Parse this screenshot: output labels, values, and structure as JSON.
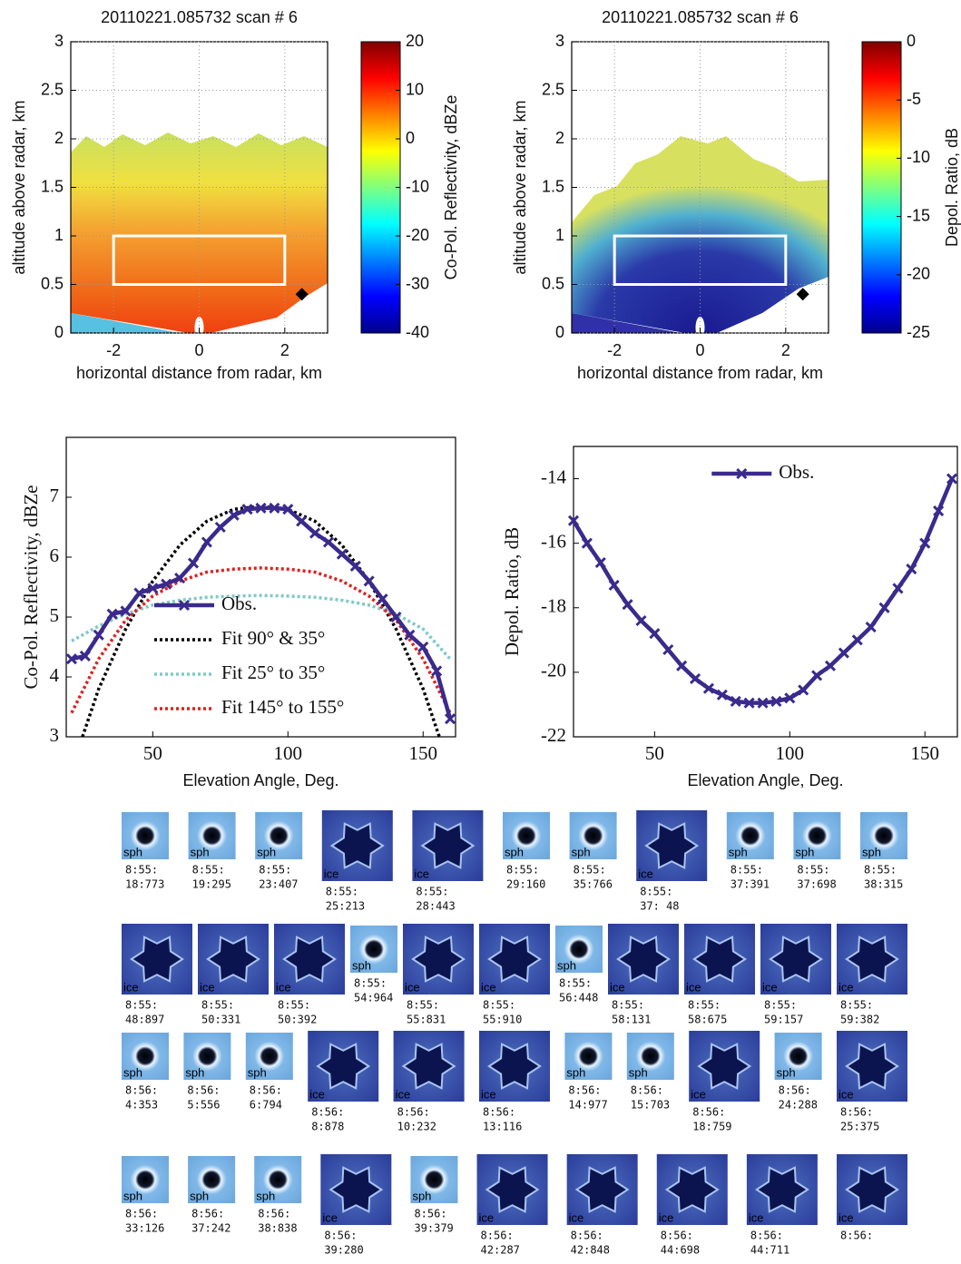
{
  "chart_data": [
    {
      "type": "heatmap",
      "title": "20110221.085732 scan # 6",
      "xlabel": "horizontal distance from radar, km",
      "ylabel": "altitude above radar, km",
      "xlim": [
        -3,
        3
      ],
      "xticks": [
        -2,
        0,
        2
      ],
      "ylim": [
        0,
        3
      ],
      "yticks": [
        0,
        0.5,
        1,
        1.5,
        2,
        2.5,
        3
      ],
      "grid": true,
      "colormap": "jet",
      "colorbar_label": "Co-Pol. Reflectivity, dBZe",
      "clim": [
        -40,
        20
      ],
      "cticks": [
        -40,
        -30,
        -20,
        -10,
        0,
        10,
        20
      ],
      "box": {
        "x": [
          -2,
          2
        ],
        "y": [
          0.5,
          1
        ]
      },
      "marker": {
        "x": 2.4,
        "y": 0.4
      }
    },
    {
      "type": "heatmap",
      "title": "20110221.085732 scan # 6",
      "xlabel": "horizontal distance from radar, km",
      "ylabel": "altitude above radar, km",
      "xlim": [
        -3,
        3
      ],
      "xticks": [
        -2,
        0,
        2
      ],
      "ylim": [
        0,
        3
      ],
      "yticks": [
        0,
        0.5,
        1,
        1.5,
        2,
        2.5,
        3
      ],
      "grid": true,
      "colormap": "jet",
      "colorbar_label": "Depol. Ratio, dB",
      "clim": [
        -25,
        0
      ],
      "cticks": [
        -25,
        -20,
        -15,
        -10,
        -5,
        0
      ],
      "box": {
        "x": [
          -2,
          2
        ],
        "y": [
          0.5,
          1
        ]
      },
      "marker": {
        "x": 2.4,
        "y": 0.4
      }
    },
    {
      "type": "line",
      "xlabel": "Elevation Angle, Deg.",
      "ylabel": "Co-Pol. Reflectivity, dBZe",
      "xlim": [
        18,
        162
      ],
      "xticks": [
        50,
        100,
        150
      ],
      "ylim": [
        3,
        8
      ],
      "yticks": [
        3,
        4,
        5,
        6,
        7
      ],
      "grid": false,
      "legend": "center-left",
      "series": [
        {
          "name": "Obs.",
          "color": "#3b2a8c",
          "style": "solid",
          "marker": "x",
          "x": [
            20,
            25,
            30,
            35,
            40,
            45,
            50,
            55,
            60,
            65,
            70,
            75,
            80,
            85,
            90,
            95,
            100,
            105,
            110,
            115,
            120,
            125,
            130,
            135,
            140,
            145,
            150,
            155,
            160
          ],
          "values": [
            4.3,
            4.35,
            4.7,
            5.05,
            5.1,
            5.4,
            5.48,
            5.55,
            5.65,
            5.9,
            6.25,
            6.5,
            6.7,
            6.8,
            6.82,
            6.82,
            6.8,
            6.6,
            6.4,
            6.25,
            6.05,
            5.85,
            5.6,
            5.3,
            5.0,
            4.7,
            4.5,
            4.1,
            3.3
          ]
        },
        {
          "name": "Fit 90° & 35°",
          "color": "#000000",
          "style": "dotted",
          "x": [
            24,
            30,
            40,
            50,
            60,
            70,
            80,
            90,
            100,
            110,
            120,
            130,
            140,
            150,
            156
          ],
          "values": [
            3.0,
            3.8,
            4.8,
            5.6,
            6.2,
            6.6,
            6.8,
            6.85,
            6.8,
            6.6,
            6.2,
            5.6,
            4.8,
            3.8,
            3.0
          ]
        },
        {
          "name": "Fit 25° to 35°",
          "color": "#7fc8c8",
          "style": "dotted",
          "x": [
            20,
            30,
            40,
            50,
            60,
            70,
            80,
            90,
            100,
            110,
            120,
            130,
            140,
            150,
            160
          ],
          "values": [
            4.6,
            4.85,
            5.05,
            5.2,
            5.28,
            5.33,
            5.35,
            5.36,
            5.35,
            5.33,
            5.28,
            5.2,
            5.05,
            4.8,
            4.3
          ]
        },
        {
          "name": "Fit 145° to 155°",
          "color": "#e02020",
          "style": "dotted",
          "x": [
            20,
            30,
            40,
            50,
            60,
            70,
            80,
            90,
            100,
            110,
            120,
            130,
            140,
            150,
            160
          ],
          "values": [
            3.4,
            4.3,
            4.95,
            5.35,
            5.6,
            5.75,
            5.8,
            5.82,
            5.8,
            5.75,
            5.6,
            5.35,
            4.95,
            4.3,
            3.4
          ]
        }
      ]
    },
    {
      "type": "line",
      "xlabel": "Elevation Angle, Deg.",
      "ylabel": "Depol. Ratio, dB",
      "xlim": [
        20,
        162
      ],
      "xticks": [
        50,
        100,
        150
      ],
      "ylim": [
        -22,
        -13
      ],
      "yticks": [
        -22,
        -20,
        -18,
        -16,
        -14
      ],
      "grid": false,
      "legend": "upper-center",
      "series": [
        {
          "name": "Obs.",
          "color": "#3b2a8c",
          "style": "solid",
          "marker": "x",
          "x": [
            20,
            25,
            30,
            35,
            40,
            45,
            50,
            55,
            60,
            65,
            70,
            75,
            80,
            85,
            90,
            95,
            100,
            105,
            110,
            115,
            120,
            125,
            130,
            135,
            140,
            145,
            150,
            155,
            160
          ],
          "values": [
            -15.3,
            -16.0,
            -16.6,
            -17.3,
            -17.9,
            -18.4,
            -18.8,
            -19.3,
            -19.8,
            -20.2,
            -20.5,
            -20.7,
            -20.9,
            -20.95,
            -20.95,
            -20.9,
            -20.8,
            -20.55,
            -20.1,
            -19.8,
            -19.4,
            -19.0,
            -18.6,
            -18.0,
            -17.4,
            -16.8,
            -16.0,
            -15.0,
            -14.0
          ]
        }
      ]
    }
  ],
  "particles": [
    [
      {
        "tag": "sph",
        "time": [
          "8:55:",
          "18:773"
        ]
      },
      {
        "tag": "sph",
        "time": [
          "8:55:",
          "19:295"
        ]
      },
      {
        "tag": "sph",
        "time": [
          "8:55:",
          "23:407"
        ]
      },
      {
        "tag": "ice",
        "time": [
          "8:55:",
          "25:213"
        ]
      },
      {
        "tag": "ice",
        "time": [
          "8:55:",
          "28:443"
        ]
      },
      {
        "tag": "sph",
        "time": [
          "8:55:",
          "29:160"
        ]
      },
      {
        "tag": "sph",
        "time": [
          "8:55:",
          "35:766"
        ]
      },
      {
        "tag": "ice",
        "time": [
          "8:55:",
          "37: 48"
        ]
      },
      {
        "tag": "sph",
        "time": [
          "8:55:",
          "37:391"
        ]
      },
      {
        "tag": "sph",
        "time": [
          "8:55:",
          "37:698"
        ]
      },
      {
        "tag": "sph",
        "time": [
          "8:55:",
          "38:315"
        ]
      }
    ],
    [
      {
        "tag": "ice",
        "time": [
          "8:55:",
          "48:897"
        ]
      },
      {
        "tag": "ice",
        "time": [
          "8:55:",
          "50:331"
        ]
      },
      {
        "tag": "ice",
        "time": [
          "8:55:",
          "50:392"
        ]
      },
      {
        "tag": "sph",
        "time": [
          "8:55:",
          "54:964"
        ]
      },
      {
        "tag": "ice",
        "time": [
          "8:55:",
          "55:831"
        ]
      },
      {
        "tag": "ice",
        "time": [
          "8:55:",
          "55:910"
        ]
      },
      {
        "tag": "sph",
        "time": [
          "8:55:",
          "56:448"
        ]
      },
      {
        "tag": "ice",
        "time": [
          "8:55:",
          "58:131"
        ]
      },
      {
        "tag": "ice",
        "time": [
          "8:55:",
          "58:675"
        ]
      },
      {
        "tag": "ice",
        "time": [
          "8:55:",
          "59:157"
        ]
      },
      {
        "tag": "ice",
        "time": [
          "8:55:",
          "59:382"
        ]
      }
    ],
    [
      {
        "tag": "sph",
        "time": [
          "8:56:",
          "4:353"
        ]
      },
      {
        "tag": "sph",
        "time": [
          "8:56:",
          "5:556"
        ]
      },
      {
        "tag": "sph",
        "time": [
          "8:56:",
          "6:794"
        ]
      },
      {
        "tag": "ice",
        "time": [
          "8:56:",
          "8:878"
        ]
      },
      {
        "tag": "ice",
        "time": [
          "8:56:",
          "10:232"
        ]
      },
      {
        "tag": "ice",
        "time": [
          "8:56:",
          "13:116"
        ]
      },
      {
        "tag": "sph",
        "time": [
          "8:56:",
          "14:977"
        ]
      },
      {
        "tag": "sph",
        "time": [
          "8:56:",
          "15:703"
        ]
      },
      {
        "tag": "ice",
        "time": [
          "8:56:",
          "18:759"
        ]
      },
      {
        "tag": "sph",
        "time": [
          "8:56:",
          "24:288"
        ]
      },
      {
        "tag": "ice",
        "time": [
          "8:56:",
          "25:375"
        ]
      }
    ],
    [
      {
        "tag": "sph",
        "time": [
          "8:56:",
          "33:126"
        ]
      },
      {
        "tag": "sph",
        "time": [
          "8:56:",
          "37:242"
        ]
      },
      {
        "tag": "sph",
        "time": [
          "8:56:",
          "38:838"
        ]
      },
      {
        "tag": "ice",
        "time": [
          "8:56:",
          "39:280"
        ]
      },
      {
        "tag": "sph",
        "time": [
          "8:56:",
          "39:379"
        ]
      },
      {
        "tag": "ice",
        "time": [
          "8:56:",
          "42:287"
        ]
      },
      {
        "tag": "ice",
        "time": [
          "8:56:",
          "42:848"
        ]
      },
      {
        "tag": "ice",
        "time": [
          "8:56:",
          "44:698"
        ]
      },
      {
        "tag": "ice",
        "time": [
          "8:56:",
          "44:711"
        ]
      },
      {
        "tag": "ice",
        "time": [
          "8:56:"
        ]
      }
    ]
  ]
}
